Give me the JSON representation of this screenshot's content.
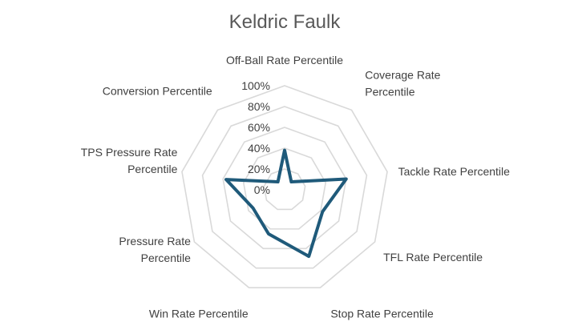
{
  "chart_data": {
    "type": "radar",
    "title": "Keldric Faulk",
    "categories": [
      "Off-Ball Rate Percentile",
      "Coverage Rate Percentile",
      "Tackle Rate Percentile",
      "TFL Rate Percentile",
      "Stop Rate Percentile",
      "Win Rate Percentile",
      "Pressure Rate Percentile",
      "TPS Pressure Rate Percentile",
      "Conversion Percentile"
    ],
    "series": [
      {
        "values": [
          38,
          10,
          60,
          42,
          68,
          45,
          35,
          57,
          10
        ]
      }
    ],
    "ylim": [
      0,
      100
    ],
    "ticks": [
      "0%",
      "20%",
      "40%",
      "60%",
      "80%",
      "100%"
    ],
    "grid": true,
    "legend": "none",
    "colors": {
      "series": "#1f5a7a",
      "grid": "#d9d9d9",
      "text": "#404040",
      "title": "#595959"
    }
  }
}
